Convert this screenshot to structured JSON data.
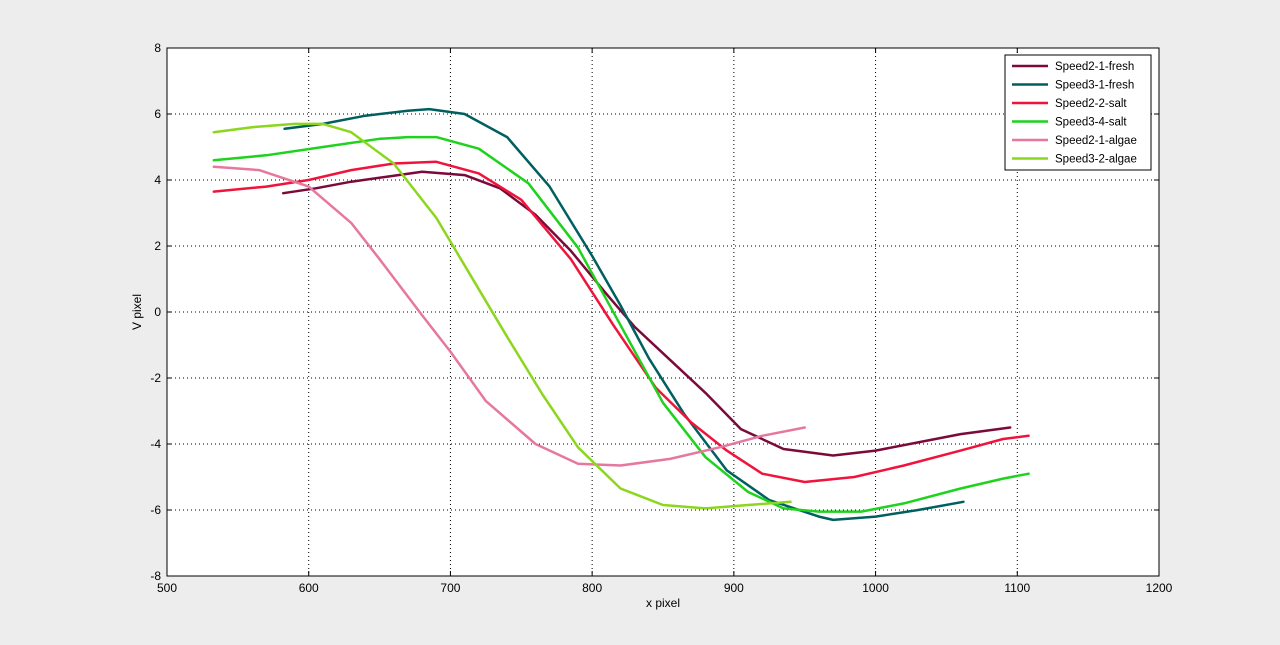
{
  "chart_data": {
    "type": "line",
    "title": "",
    "xlabel": "x  pixel",
    "ylabel": "V pixel",
    "xlim": [
      500,
      1200
    ],
    "ylim": [
      -8,
      8
    ],
    "xticks": [
      500,
      600,
      700,
      800,
      900,
      1000,
      1100,
      1200
    ],
    "yticks": [
      -8,
      -6,
      -4,
      -2,
      0,
      2,
      4,
      6,
      8
    ],
    "grid": true,
    "legend_position": "top-right",
    "series": [
      {
        "name": "Speed2-1-fresh",
        "color": "#7b0a3a",
        "x": [
          582,
          605,
          630,
          655,
          680,
          710,
          735,
          760,
          785,
          810,
          830,
          855,
          880,
          905,
          935,
          970,
          1000,
          1030,
          1060,
          1095
        ],
        "y": [
          3.6,
          3.75,
          3.95,
          4.1,
          4.25,
          4.15,
          3.75,
          2.95,
          1.85,
          0.55,
          -0.45,
          -1.45,
          -2.45,
          -3.55,
          -4.15,
          -4.35,
          -4.2,
          -3.95,
          -3.7,
          -3.5
        ]
      },
      {
        "name": "Speed3-1-fresh",
        "color": "#005f5f",
        "x": [
          583,
          610,
          640,
          670,
          685,
          710,
          740,
          770,
          800,
          820,
          840,
          865,
          895,
          925,
          960,
          970,
          1000,
          1030,
          1062
        ],
        "y": [
          5.55,
          5.7,
          5.95,
          6.1,
          6.15,
          6.0,
          5.3,
          3.8,
          1.7,
          0.2,
          -1.4,
          -3.1,
          -4.8,
          -5.7,
          -6.2,
          -6.3,
          -6.2,
          -6.0,
          -5.75
        ]
      },
      {
        "name": "Speed2-2-salt",
        "color": "#f0143c",
        "x": [
          533,
          570,
          600,
          630,
          660,
          690,
          720,
          750,
          785,
          815,
          845,
          870,
          895,
          920,
          950,
          985,
          1020,
          1060,
          1090,
          1108
        ],
        "y": [
          3.65,
          3.8,
          4.0,
          4.3,
          4.5,
          4.55,
          4.2,
          3.4,
          1.6,
          -0.4,
          -2.3,
          -3.35,
          -4.2,
          -4.9,
          -5.15,
          -5.0,
          -4.65,
          -4.2,
          -3.85,
          -3.75
        ]
      },
      {
        "name": "Speed3-4-salt",
        "color": "#1ed21e",
        "x": [
          533,
          570,
          610,
          650,
          670,
          690,
          720,
          755,
          790,
          820,
          850,
          880,
          910,
          935,
          960,
          990,
          1020,
          1060,
          1090,
          1108
        ],
        "y": [
          4.6,
          4.75,
          5.0,
          5.25,
          5.3,
          5.3,
          4.95,
          3.9,
          1.95,
          -0.4,
          -2.75,
          -4.4,
          -5.45,
          -5.95,
          -6.05,
          -6.05,
          -5.8,
          -5.35,
          -5.05,
          -4.9
        ]
      },
      {
        "name": "Speed2-1-algae",
        "color": "#e678a0",
        "x": [
          533,
          565,
          600,
          630,
          650,
          680,
          700,
          725,
          760,
          790,
          820,
          855,
          890,
          920,
          950
        ],
        "y": [
          4.4,
          4.3,
          3.8,
          2.7,
          1.6,
          -0.1,
          -1.2,
          -2.7,
          -4.0,
          -4.6,
          -4.65,
          -4.45,
          -4.1,
          -3.75,
          -3.5
        ]
      },
      {
        "name": "Speed3-2-algae",
        "color": "#8cd71e",
        "x": [
          533,
          560,
          590,
          610,
          630,
          660,
          690,
          715,
          740,
          765,
          790,
          820,
          850,
          880,
          910,
          940
        ],
        "y": [
          5.45,
          5.6,
          5.7,
          5.7,
          5.45,
          4.5,
          2.85,
          1.05,
          -0.75,
          -2.5,
          -4.1,
          -5.35,
          -5.85,
          -5.95,
          -5.85,
          -5.75
        ]
      }
    ]
  }
}
